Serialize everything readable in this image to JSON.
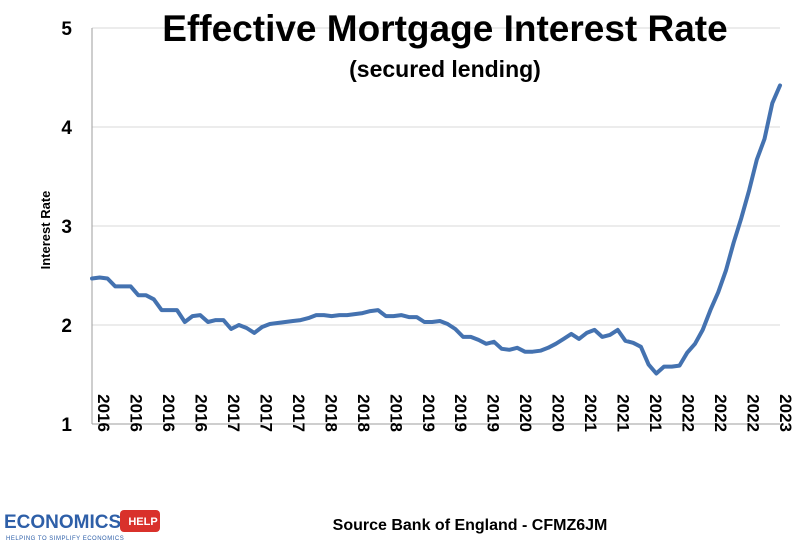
{
  "chart_data": {
    "type": "line",
    "title": "Effective Mortgage Interest Rate",
    "subtitle": "(secured lending)",
    "xlabel": "",
    "ylabel": "Interest Rate",
    "ylim": [
      1,
      5
    ],
    "yticks": [
      "1",
      "2",
      "3",
      "4",
      "5"
    ],
    "xticks": [
      "2016",
      "2016",
      "2016",
      "2016",
      "2017",
      "2017",
      "2017",
      "2018",
      "2018",
      "2018",
      "2019",
      "2019",
      "2019",
      "2020",
      "2020",
      "2021",
      "2021",
      "2021",
      "2022",
      "2022",
      "2022",
      "2023"
    ],
    "grid": true,
    "legend": "none",
    "line_color": "#4472b0",
    "series": [
      {
        "values": [
          2.47,
          2.48,
          2.47,
          2.39,
          2.39,
          2.39,
          2.3,
          2.3,
          2.26,
          2.15,
          2.15,
          2.15,
          2.03,
          2.09,
          2.1,
          2.03,
          2.05,
          2.05,
          1.96,
          2.0,
          1.97,
          1.92,
          1.98,
          2.01,
          2.02,
          2.03,
          2.04,
          2.05,
          2.07,
          2.1,
          2.1,
          2.09,
          2.1,
          2.1,
          2.11,
          2.12,
          2.14,
          2.15,
          2.09,
          2.09,
          2.1,
          2.08,
          2.08,
          2.03,
          2.03,
          2.04,
          2.01,
          1.96,
          1.88,
          1.88,
          1.85,
          1.81,
          1.83,
          1.76,
          1.75,
          1.77,
          1.73,
          1.73,
          1.74,
          1.77,
          1.81,
          1.86,
          1.91,
          1.86,
          1.92,
          1.95,
          1.88,
          1.9,
          1.95,
          1.84,
          1.82,
          1.78,
          1.6,
          1.51,
          1.58,
          1.58,
          1.59,
          1.72,
          1.81,
          1.95,
          2.15,
          2.33,
          2.55,
          2.83,
          3.08,
          3.36,
          3.67,
          3.88,
          4.24,
          4.42
        ]
      }
    ]
  },
  "source": "Source Bank of England - CFMZ6JM",
  "logo": {
    "name": "ECONOMICS",
    "badge": "HELP",
    "tagline": "HELPING TO SIMPLIFY ECONOMICS",
    "color": "#2e5fa8",
    "badge_color": "#d9312b"
  }
}
